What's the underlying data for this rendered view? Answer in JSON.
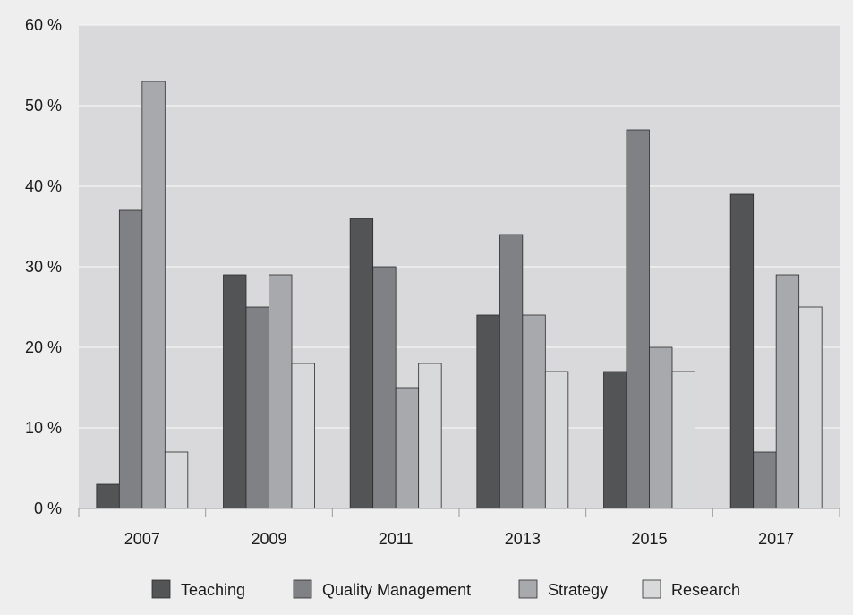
{
  "chart_data": {
    "type": "bar",
    "title": "",
    "xlabel": "",
    "ylabel": "",
    "categories": [
      "2007",
      "2009",
      "2011",
      "2013",
      "2015",
      "2017"
    ],
    "ylim": [
      0,
      60
    ],
    "y_ticks": [
      0,
      10,
      20,
      30,
      40,
      50,
      60
    ],
    "y_tick_labels": [
      "0 %",
      "10 %",
      "20 %",
      "30 %",
      "40 %",
      "50 %",
      "60 %"
    ],
    "grid": true,
    "legend_position": "bottom",
    "series": [
      {
        "name": "Teaching",
        "color": "#535456",
        "values": [
          3,
          29,
          36,
          24,
          17,
          39
        ]
      },
      {
        "name": "Quality Management",
        "color": "#808184",
        "values": [
          37,
          25,
          30,
          34,
          47,
          7
        ]
      },
      {
        "name": "Strategy",
        "color": "#a8a9ac",
        "values": [
          53,
          29,
          15,
          24,
          20,
          29
        ]
      },
      {
        "name": "Research",
        "color": "#d8d9db",
        "values": [
          7,
          18,
          18,
          17,
          17,
          25
        ]
      }
    ],
    "plot_background": "#d9d9db",
    "page_background": "#eeeeee",
    "bar_outline": "#2b2b2b"
  }
}
